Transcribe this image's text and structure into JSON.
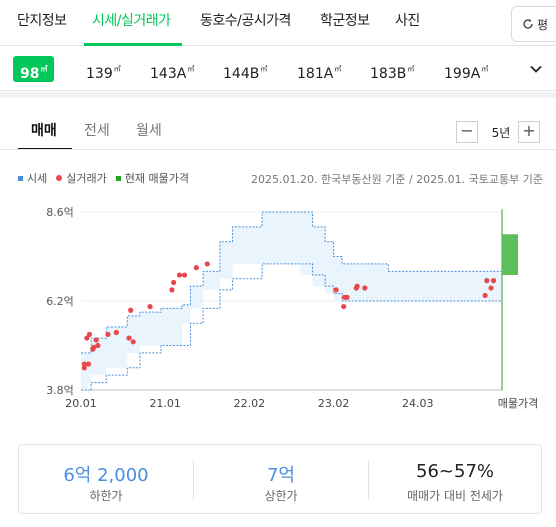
{
  "nav": {
    "tabs": [
      "단지정보",
      "시세/실거래가",
      "동호수/공시가격",
      "학군정보",
      "사진"
    ],
    "active_tab": "시세/실거래가",
    "unit_toggle": "평"
  },
  "sizes": [
    {
      "num": "98",
      "suffix": "",
      "active": true
    },
    {
      "num": "139",
      "suffix": "",
      "active": false
    },
    {
      "num": "143",
      "suffix": "A",
      "active": false
    },
    {
      "num": "144",
      "suffix": "B",
      "active": false
    },
    {
      "num": "181",
      "suffix": "A",
      "active": false
    },
    {
      "num": "183",
      "suffix": "B",
      "active": false
    },
    {
      "num": "199",
      "suffix": "A",
      "active": false
    }
  ],
  "deal_tabs": [
    "매매",
    "전세",
    "월세"
  ],
  "period": {
    "value": "5년",
    "minus": "−",
    "plus": "+"
  },
  "legend": {
    "market": "시세",
    "actual": "실거래가",
    "listing": "현재 매물가격",
    "source": "2025.01.20. 한국부동산원 기준 / 2025.01. 국토교통부 기준"
  },
  "colors": {
    "brand": "#03c75a",
    "market": "#4a90d9",
    "actual": "#e8474c",
    "listing": "#21a621",
    "low_value": "#4a8fe0"
  },
  "chart_data": {
    "type": "area",
    "unit": "억",
    "x_ticks": [
      "20.01",
      "21.01",
      "22.02",
      "23.02",
      "24.03",
      "매물가격"
    ],
    "y_ticks": [
      "8.6억",
      "6.2억",
      "3.8억"
    ],
    "ylim": [
      3.8,
      8.6
    ],
    "market_range": [
      {
        "x": 2020.0,
        "low": 3.8,
        "high": 4.8
      },
      {
        "x": 2020.08,
        "low": 3.8,
        "high": 4.8
      },
      {
        "x": 2020.12,
        "low": 4.0,
        "high": 5.2
      },
      {
        "x": 2020.3,
        "low": 4.2,
        "high": 5.5
      },
      {
        "x": 2020.55,
        "low": 4.4,
        "high": 5.8
      },
      {
        "x": 2020.7,
        "low": 4.8,
        "high": 5.9
      },
      {
        "x": 2020.95,
        "low": 5.0,
        "high": 6.0
      },
      {
        "x": 2021.2,
        "low": 5.0,
        "high": 6.1
      },
      {
        "x": 2021.3,
        "low": 5.6,
        "high": 6.6
      },
      {
        "x": 2021.45,
        "low": 6.0,
        "high": 7.0
      },
      {
        "x": 2021.65,
        "low": 6.5,
        "high": 7.8
      },
      {
        "x": 2021.8,
        "low": 6.8,
        "high": 8.2
      },
      {
        "x": 2022.15,
        "low": 7.2,
        "high": 8.6
      },
      {
        "x": 2022.6,
        "low": 7.2,
        "high": 8.6
      },
      {
        "x": 2022.75,
        "low": 6.9,
        "high": 8.2
      },
      {
        "x": 2022.9,
        "low": 6.6,
        "high": 7.8
      },
      {
        "x": 2023.0,
        "low": 6.4,
        "high": 7.4
      },
      {
        "x": 2023.1,
        "low": 6.2,
        "high": 7.2
      },
      {
        "x": 2023.5,
        "low": 6.2,
        "high": 7.2
      },
      {
        "x": 2023.65,
        "low": 6.2,
        "high": 7.0
      },
      {
        "x": 2024.99,
        "low": 6.2,
        "high": 7.0
      }
    ],
    "actual_trades": [
      {
        "x": 2020.04,
        "y": 4.4
      },
      {
        "x": 2020.04,
        "y": 4.5
      },
      {
        "x": 2020.07,
        "y": 5.2
      },
      {
        "x": 2020.09,
        "y": 4.5
      },
      {
        "x": 2020.1,
        "y": 5.3
      },
      {
        "x": 2020.14,
        "y": 4.9
      },
      {
        "x": 2020.15,
        "y": 4.95
      },
      {
        "x": 2020.18,
        "y": 5.15
      },
      {
        "x": 2020.2,
        "y": 5.0
      },
      {
        "x": 2020.32,
        "y": 5.3
      },
      {
        "x": 2020.42,
        "y": 5.35
      },
      {
        "x": 2020.57,
        "y": 5.2
      },
      {
        "x": 2020.59,
        "y": 5.95
      },
      {
        "x": 2020.62,
        "y": 5.1
      },
      {
        "x": 2020.82,
        "y": 6.05
      },
      {
        "x": 2021.08,
        "y": 6.5
      },
      {
        "x": 2021.1,
        "y": 6.7
      },
      {
        "x": 2021.17,
        "y": 6.9
      },
      {
        "x": 2021.23,
        "y": 6.9
      },
      {
        "x": 2021.37,
        "y": 7.1
      },
      {
        "x": 2021.5,
        "y": 7.2
      },
      {
        "x": 2023.03,
        "y": 6.5
      },
      {
        "x": 2023.12,
        "y": 6.05
      },
      {
        "x": 2023.13,
        "y": 6.3
      },
      {
        "x": 2023.16,
        "y": 6.3
      },
      {
        "x": 2023.27,
        "y": 6.55
      },
      {
        "x": 2023.28,
        "y": 6.6
      },
      {
        "x": 2023.37,
        "y": 6.55
      },
      {
        "x": 2024.8,
        "y": 6.35
      },
      {
        "x": 2024.82,
        "y": 6.75
      },
      {
        "x": 2024.87,
        "y": 6.55
      },
      {
        "x": 2024.9,
        "y": 6.75
      }
    ],
    "listing_range": {
      "low": 6.9,
      "high": 8.0
    }
  },
  "summary": [
    {
      "value": "6억 2,000",
      "label": "하한가"
    },
    {
      "value": "7억",
      "label": "상한가"
    },
    {
      "value": "56~57%",
      "label": "매매가 대비 전세가"
    }
  ]
}
